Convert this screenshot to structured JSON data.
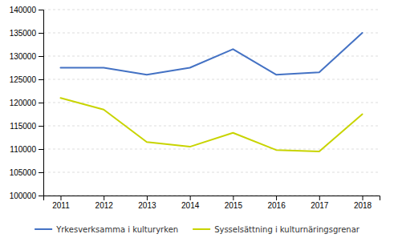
{
  "chart_data": {
    "type": "line",
    "x": [
      2011,
      2012,
      2013,
      2014,
      2015,
      2016,
      2017,
      2018
    ],
    "xlim": [
      2010.6,
      2018.4
    ],
    "xticks": [
      2011,
      2012,
      2013,
      2014,
      2015,
      2016,
      2017,
      2018
    ],
    "ylim": [
      100000,
      140000
    ],
    "yticks": [
      100000,
      105000,
      110000,
      115000,
      120000,
      125000,
      130000,
      135000,
      140000
    ],
    "series": [
      {
        "name": "Yrkesverksamma i kulturyrken",
        "color": "#4472C4",
        "values": [
          127500,
          127500,
          126000,
          127500,
          131500,
          126000,
          126500,
          135000
        ]
      },
      {
        "name": "Sysselsättning i kulturnäringsgrenar",
        "color": "#C8D400",
        "values": [
          121000,
          118500,
          111500,
          110500,
          113500,
          109800,
          109500,
          117500
        ]
      }
    ],
    "grid": true,
    "legend": "bottom"
  }
}
